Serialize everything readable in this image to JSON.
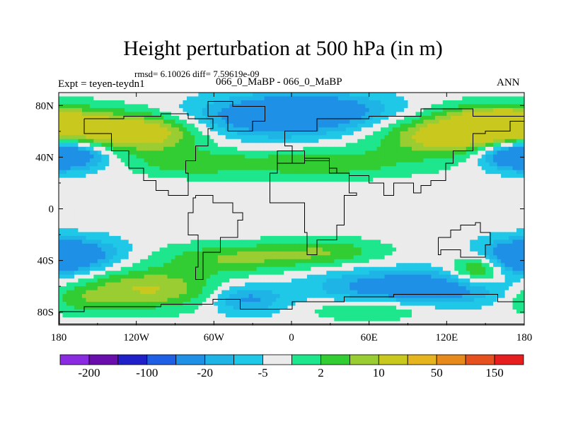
{
  "chart_data": {
    "type": "contour-map",
    "title": "Height perturbation at 500 hPa (in m)",
    "stats": "rmsd= 6.10026 diff= 7.59619e-09",
    "left_label": "Expt = teyen-teydn1",
    "center_label": "066_0_MaBP - 066_0_MaBP",
    "right_label": "ANN",
    "xlim": [
      -180,
      180
    ],
    "ylim": [
      -90,
      90
    ],
    "x_ticks": [
      {
        "value": -180,
        "label": "180"
      },
      {
        "value": -120,
        "label": "120W"
      },
      {
        "value": -60,
        "label": "60W"
      },
      {
        "value": 0,
        "label": "0"
      },
      {
        "value": 60,
        "label": "60E"
      },
      {
        "value": 120,
        "label": "120E"
      },
      {
        "value": 180,
        "label": "180"
      }
    ],
    "y_ticks": [
      {
        "value": 80,
        "label": "80N"
      },
      {
        "value": 40,
        "label": "40N"
      },
      {
        "value": 0,
        "label": "0"
      },
      {
        "value": -40,
        "label": "40S"
      },
      {
        "value": -80,
        "label": "80S"
      }
    ],
    "colorbar": {
      "colors": [
        "#8a2be2",
        "#6a0dad",
        "#2020c8",
        "#1e5fe6",
        "#1e90e6",
        "#1eb4e6",
        "#1ec8e6",
        "#ebebeb",
        "#1ee68c",
        "#32cd32",
        "#9acd32",
        "#c8c81e",
        "#e6b41e",
        "#e68a1e",
        "#e6501e",
        "#e61e1e"
      ],
      "labels": [
        {
          "after_box": 1,
          "text": "-200"
        },
        {
          "after_box": 3,
          "text": "-100"
        },
        {
          "after_box": 5,
          "text": "-20"
        },
        {
          "after_box": 7,
          "text": "-5"
        },
        {
          "after_box": 9,
          "text": "2"
        },
        {
          "after_box": 11,
          "text": "10"
        },
        {
          "after_box": 13,
          "text": "50"
        },
        {
          "after_box": 15,
          "text": "150"
        }
      ]
    },
    "level_colors": {
      "-3": "#1e90e6",
      "-2": "#1eb4e6",
      "-1": "#1ec8e6",
      "0": "#ebebeb",
      "1": "#1ee68c",
      "2": "#32cd32",
      "3": "#9acd32",
      "4": "#c8c81e"
    },
    "field_features": [
      {
        "lon": -170,
        "lat": 62,
        "amp": 3.6,
        "sx": 55,
        "sy": 11
      },
      {
        "lon": -110,
        "lat": 58,
        "amp": 3.2,
        "sx": 30,
        "sy": 10
      },
      {
        "lon": 120,
        "lat": 55,
        "amp": 3.6,
        "sx": 38,
        "sy": 10
      },
      {
        "lon": 160,
        "lat": 68,
        "amp": 3.2,
        "sx": 30,
        "sy": 9
      },
      {
        "lon": 20,
        "lat": 35,
        "amp": 2.3,
        "sx": 55,
        "sy": 8
      },
      {
        "lon": -80,
        "lat": 35,
        "amp": 1.8,
        "sx": 30,
        "sy": 7
      },
      {
        "lon": -15,
        "lat": 70,
        "amp": -3.8,
        "sx": 50,
        "sy": 11
      },
      {
        "lon": 20,
        "lat": 78,
        "amp": -2.6,
        "sx": 40,
        "sy": 9
      },
      {
        "lon": -178,
        "lat": 42,
        "amp": -3.6,
        "sx": 22,
        "sy": 8
      },
      {
        "lon": 178,
        "lat": 42,
        "amp": -3.4,
        "sx": 22,
        "sy": 8
      },
      {
        "lon": -170,
        "lat": -35,
        "amp": -3.2,
        "sx": 28,
        "sy": 9
      },
      {
        "lon": 178,
        "lat": -38,
        "amp": -3.0,
        "sx": 22,
        "sy": 9
      },
      {
        "lon": -40,
        "lat": -38,
        "amp": 2.6,
        "sx": 42,
        "sy": 8
      },
      {
        "lon": 30,
        "lat": -33,
        "amp": 2.0,
        "sx": 30,
        "sy": 7
      },
      {
        "lon": -110,
        "lat": -62,
        "amp": 3.6,
        "sx": 38,
        "sy": 11
      },
      {
        "lon": -165,
        "lat": -70,
        "amp": 1.6,
        "sx": 20,
        "sy": 8
      },
      {
        "lon": -35,
        "lat": -70,
        "amp": -3.0,
        "sx": 20,
        "sy": 8
      },
      {
        "lon": 70,
        "lat": -60,
        "amp": -3.0,
        "sx": 40,
        "sy": 9
      },
      {
        "lon": 60,
        "lat": -78,
        "amp": 1.8,
        "sx": 30,
        "sy": 6
      },
      {
        "lon": 145,
        "lat": -47,
        "amp": 3.8,
        "sx": 14,
        "sy": 8
      },
      {
        "lon": 125,
        "lat": -62,
        "amp": -2.4,
        "sx": 35,
        "sy": 9
      }
    ],
    "landmasses": [
      [
        [
          -160,
          70
        ],
        [
          -130,
          72
        ],
        [
          -100,
          74
        ],
        [
          -80,
          70
        ],
        [
          -60,
          62
        ],
        [
          -65,
          48
        ],
        [
          -75,
          38
        ],
        [
          -82,
          28
        ],
        [
          -80,
          10
        ],
        [
          -95,
          15
        ],
        [
          -105,
          22
        ],
        [
          -115,
          32
        ],
        [
          -125,
          45
        ],
        [
          -140,
          58
        ],
        [
          -160,
          60
        ]
      ],
      [
        [
          -75,
          10
        ],
        [
          -60,
          5
        ],
        [
          -45,
          -3
        ],
        [
          -37,
          -8
        ],
        [
          -42,
          -22
        ],
        [
          -55,
          -33
        ],
        [
          -68,
          -55
        ],
        [
          -74,
          -45
        ],
        [
          -72,
          -20
        ],
        [
          -80,
          -3
        ],
        [
          -77,
          8
        ]
      ],
      [
        [
          -10,
          36
        ],
        [
          10,
          40
        ],
        [
          30,
          32
        ],
        [
          35,
          28
        ],
        [
          45,
          12
        ],
        [
          51,
          11
        ],
        [
          40,
          -12
        ],
        [
          35,
          -24
        ],
        [
          20,
          -35
        ],
        [
          12,
          -18
        ],
        [
          10,
          4
        ],
        [
          -8,
          5
        ],
        [
          -17,
          14
        ],
        [
          -16,
          28
        ]
      ],
      [
        [
          -10,
          36
        ],
        [
          0,
          48
        ],
        [
          -5,
          60
        ],
        [
          20,
          70
        ],
        [
          60,
          72
        ],
        [
          100,
          77
        ],
        [
          140,
          72
        ],
        [
          180,
          68
        ],
        [
          170,
          60
        ],
        [
          150,
          58
        ],
        [
          140,
          45
        ],
        [
          125,
          35
        ],
        [
          120,
          22
        ],
        [
          108,
          18
        ],
        [
          100,
          13
        ],
        [
          95,
          20
        ],
        [
          80,
          10
        ],
        [
          72,
          20
        ],
        [
          60,
          25
        ],
        [
          45,
          28
        ],
        [
          30,
          38
        ],
        [
          10,
          44
        ]
      ],
      [
        [
          114,
          -22
        ],
        [
          123,
          -17
        ],
        [
          131,
          -12
        ],
        [
          137,
          -12
        ],
        [
          142,
          -11
        ],
        [
          146,
          -19
        ],
        [
          153,
          -27
        ],
        [
          150,
          -38
        ],
        [
          140,
          -38
        ],
        [
          130,
          -32
        ],
        [
          115,
          -35
        ]
      ],
      [
        [
          -180,
          -80
        ],
        [
          -160,
          -76
        ],
        [
          -140,
          -75
        ],
        [
          -100,
          -73
        ],
        [
          -80,
          -74
        ],
        [
          -60,
          -70
        ],
        [
          -40,
          -78
        ],
        [
          0,
          -71
        ],
        [
          40,
          -68
        ],
        [
          80,
          -66
        ],
        [
          120,
          -66
        ],
        [
          160,
          -72
        ],
        [
          180,
          -78
        ],
        [
          180,
          -90
        ],
        [
          -180,
          -90
        ]
      ],
      [
        [
          -50,
          60
        ],
        [
          -30,
          68
        ],
        [
          -20,
          80
        ],
        [
          -45,
          83
        ],
        [
          -65,
          80
        ],
        [
          -65,
          72
        ]
      ]
    ]
  }
}
